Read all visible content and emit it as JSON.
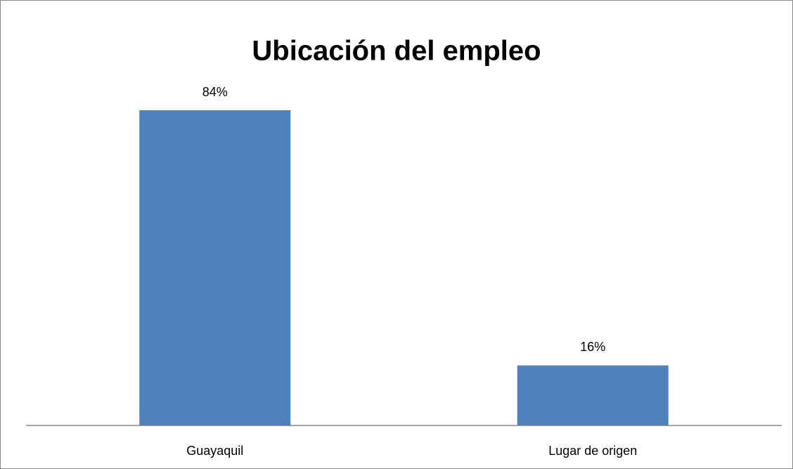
{
  "chart_data": {
    "type": "bar",
    "title": "Ubicación del empleo",
    "categories": [
      "Guayaquil",
      "Lugar de origen"
    ],
    "values": [
      84,
      16
    ],
    "value_labels": [
      "84%",
      "16%"
    ],
    "color": "#4f81bd"
  }
}
